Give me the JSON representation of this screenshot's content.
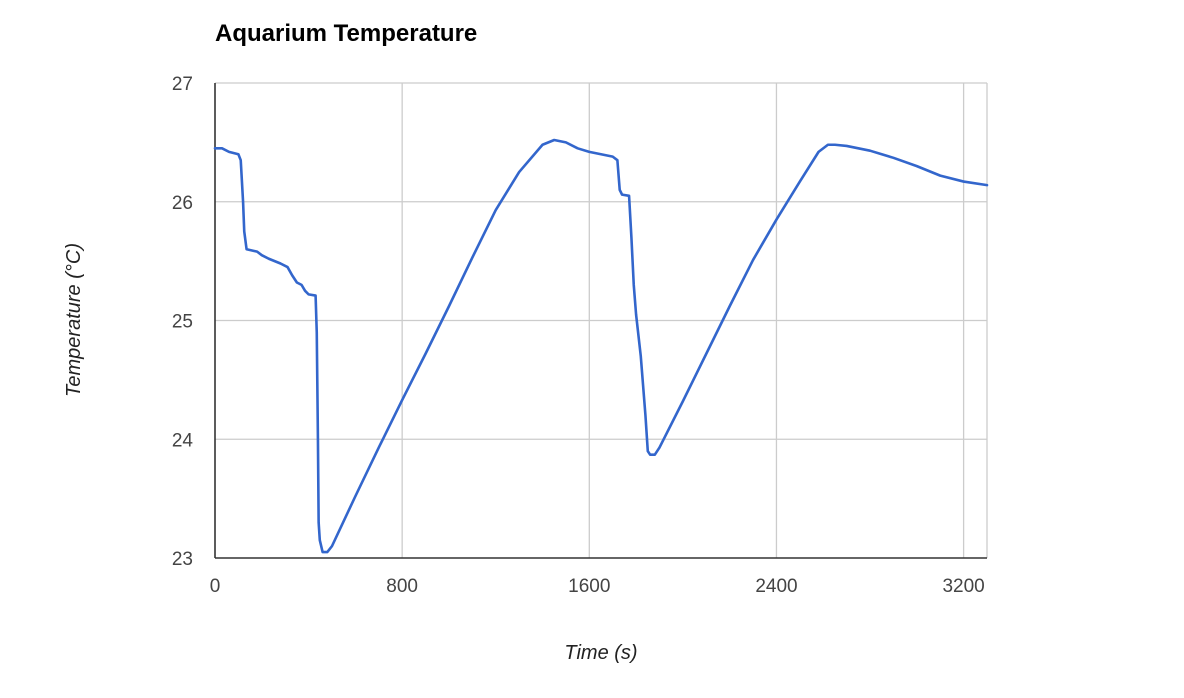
{
  "chart_data": {
    "type": "line",
    "title": "Aquarium Temperature",
    "xlabel": "Time (s)",
    "ylabel": "Temperature (°C)",
    "xlim": [
      0,
      3300
    ],
    "ylim": [
      23,
      27
    ],
    "xticks": [
      0,
      800,
      1600,
      2400,
      3200
    ],
    "yticks": [
      23,
      24,
      25,
      26,
      27
    ],
    "grid": true,
    "legend": "none",
    "series": [
      {
        "color": "#3366cc",
        "points": [
          [
            0,
            26.45
          ],
          [
            30,
            26.45
          ],
          [
            60,
            26.42
          ],
          [
            100,
            26.4
          ],
          [
            110,
            26.35
          ],
          [
            120,
            26.0
          ],
          [
            125,
            25.75
          ],
          [
            135,
            25.6
          ],
          [
            180,
            25.58
          ],
          [
            200,
            25.55
          ],
          [
            230,
            25.52
          ],
          [
            280,
            25.48
          ],
          [
            310,
            25.45
          ],
          [
            330,
            25.38
          ],
          [
            350,
            25.32
          ],
          [
            370,
            25.3
          ],
          [
            385,
            25.25
          ],
          [
            400,
            25.22
          ],
          [
            430,
            25.21
          ],
          [
            435,
            24.9
          ],
          [
            440,
            24.0
          ],
          [
            443,
            23.3
          ],
          [
            448,
            23.15
          ],
          [
            460,
            23.05
          ],
          [
            480,
            23.05
          ],
          [
            500,
            23.1
          ],
          [
            600,
            23.52
          ],
          [
            700,
            23.93
          ],
          [
            800,
            24.33
          ],
          [
            900,
            24.72
          ],
          [
            1000,
            25.12
          ],
          [
            1100,
            25.53
          ],
          [
            1200,
            25.93
          ],
          [
            1300,
            26.25
          ],
          [
            1400,
            26.48
          ],
          [
            1450,
            26.52
          ],
          [
            1500,
            26.5
          ],
          [
            1550,
            26.45
          ],
          [
            1600,
            26.42
          ],
          [
            1650,
            26.4
          ],
          [
            1700,
            26.38
          ],
          [
            1720,
            26.35
          ],
          [
            1730,
            26.1
          ],
          [
            1740,
            26.06
          ],
          [
            1770,
            26.05
          ],
          [
            1780,
            25.7
          ],
          [
            1790,
            25.3
          ],
          [
            1800,
            25.05
          ],
          [
            1820,
            24.7
          ],
          [
            1840,
            24.2
          ],
          [
            1850,
            23.9
          ],
          [
            1860,
            23.87
          ],
          [
            1880,
            23.87
          ],
          [
            1900,
            23.93
          ],
          [
            2000,
            24.32
          ],
          [
            2100,
            24.72
          ],
          [
            2200,
            25.12
          ],
          [
            2300,
            25.51
          ],
          [
            2400,
            25.85
          ],
          [
            2500,
            26.17
          ],
          [
            2580,
            26.42
          ],
          [
            2620,
            26.48
          ],
          [
            2650,
            26.48
          ],
          [
            2700,
            26.47
          ],
          [
            2750,
            26.45
          ],
          [
            2800,
            26.43
          ],
          [
            2850,
            26.4
          ],
          [
            2900,
            26.37
          ],
          [
            3000,
            26.3
          ],
          [
            3100,
            26.22
          ],
          [
            3200,
            26.17
          ],
          [
            3300,
            26.14
          ]
        ]
      }
    ]
  }
}
